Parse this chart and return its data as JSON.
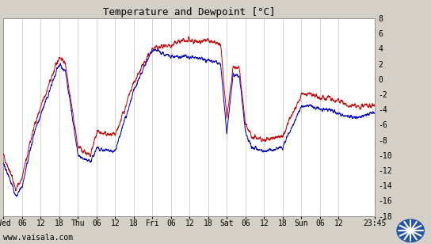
{
  "title": "Temperature and Dewpoint [°C]",
  "ylabel_right_ticks": [
    8,
    6,
    4,
    2,
    0,
    -2,
    -4,
    -6,
    -8,
    -10,
    -12,
    -14,
    -16,
    -18
  ],
  "ylim": [
    -18,
    8
  ],
  "x_tick_labels": [
    "Wed",
    "06",
    "12",
    "18",
    "Thu",
    "06",
    "12",
    "18",
    "Fri",
    "06",
    "12",
    "18",
    "Sat",
    "06",
    "12",
    "18",
    "Sun",
    "06",
    "12",
    "23:45"
  ],
  "xtick_vals": [
    0,
    6,
    12,
    18,
    24,
    30,
    36,
    42,
    48,
    54,
    60,
    66,
    72,
    78,
    84,
    90,
    96,
    102,
    108,
    113.75
  ],
  "xlim": [
    0,
    113.75
  ],
  "background_color": "#d4d0c8",
  "plot_bg_color": "#ffffff",
  "grid_color": "#c0c0c0",
  "temp_color": "#cc0000",
  "dewpoint_color": "#0000cc",
  "watermark": "www.vaisala.com",
  "title_fontsize": 9,
  "tick_fontsize": 7,
  "watermark_fontsize": 7,
  "linewidth": 0.7
}
